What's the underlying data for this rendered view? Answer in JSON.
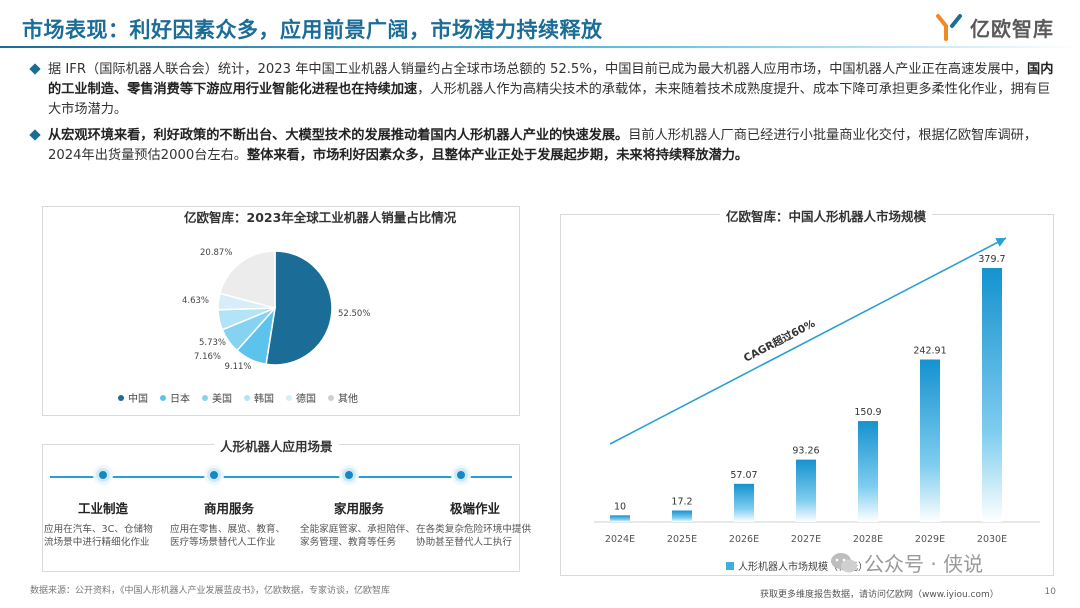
{
  "title": "市场表现：利好因素众多，应用前景广阔，市场潜力持续释放",
  "logo": {
    "text": "亿欧智库",
    "icon": "yiou-logo-icon"
  },
  "bullets": [
    {
      "segments": [
        {
          "t": "据 IFR（国际机器人联合会）统计，2023 年中国工业机器人销量约占全球市场总额的 52.5%，中国目前已成为最大机器人应用市场，中国机器人产业正在高速发展中，",
          "b": false
        },
        {
          "t": "国内的工业制造、零售消费等下游应用行业智能化进程也在持续加速",
          "b": true
        },
        {
          "t": "，人形机器人作为高精尖技术的承载体，未来随着技术成熟度提升、成本下降可承担更多柔性化作业，拥有巨大市场潜力。",
          "b": false
        }
      ]
    },
    {
      "segments": [
        {
          "t": "从宏观环境来看，利好政策的不断出台、大模型技术的发展推动着国内人形机器人产业的快速发展。",
          "b": true
        },
        {
          "t": "目前人形机器人厂商已经进行小批量商业化交付，根据亿欧智库调研，2024年出货量预估2000台左右。",
          "b": false
        },
        {
          "t": "整体来看，市场利好因素众多，且整体产业正处于发展起步期，未来将持续释放潜力。",
          "b": true
        }
      ]
    }
  ],
  "chart_data": [
    {
      "type": "pie",
      "title": "亿欧智库：2023年全球工业机器人销量占比情况",
      "categories": [
        "中国",
        "日本",
        "美国",
        "韩国",
        "德国",
        "其他"
      ],
      "values": [
        52.5,
        9.11,
        7.16,
        5.73,
        4.63,
        20.87
      ],
      "labels": [
        "52.50%",
        "9.11%",
        "7.16%",
        "5.73%",
        "4.63%",
        "20.87%"
      ],
      "colors": [
        "#1c6c98",
        "#5cc3ec",
        "#86d3f1",
        "#b3e3f6",
        "#d7eef8",
        "#ececec"
      ],
      "legend": "bottom"
    },
    {
      "type": "bar",
      "title": "亿欧智库：中国人形机器人市场规模",
      "categories": [
        "2024E",
        "2025E",
        "2026E",
        "2027E",
        "2028E",
        "2029E",
        "2030E"
      ],
      "series": [
        {
          "name": "人形机器人市场规模（亿元）",
          "values": [
            10,
            17.2,
            57.07,
            93.26,
            150.9,
            242.91,
            379.7
          ]
        }
      ],
      "value_labels": [
        "10",
        "17.2",
        "57.07",
        "93.26",
        "150.9",
        "242.91",
        "379.7"
      ],
      "annotation": "CAGR超过60%",
      "color": "#29a0d4",
      "legend": "bottom"
    }
  ],
  "scenes": {
    "title": "人形机器人应用场景",
    "items": [
      {
        "name": "工业制造",
        "desc": "应用在汽车、3C、仓储物流场景中进行精细化作业"
      },
      {
        "name": "商用服务",
        "desc": "应用在零售、展览、教育、医疗等场景替代人工作业"
      },
      {
        "name": "家用服务",
        "desc": "全能家庭管家、承担陪伴、家务管理、教育等任务"
      },
      {
        "name": "极端作业",
        "desc": "在各类复杂危险环境中提供协助甚至替代人工执行"
      }
    ]
  },
  "footer": {
    "source": "数据来源：公开资料，《中国人形机器人产业发展蓝皮书》，亿欧数据，专家访谈，亿欧智库",
    "more": "获取更多维度报告数据，请访问亿欧网（www.iyiou.com）",
    "page": "10"
  },
  "watermark": {
    "text": "公众号 · 侠说",
    "icon": "wechat-icon"
  }
}
